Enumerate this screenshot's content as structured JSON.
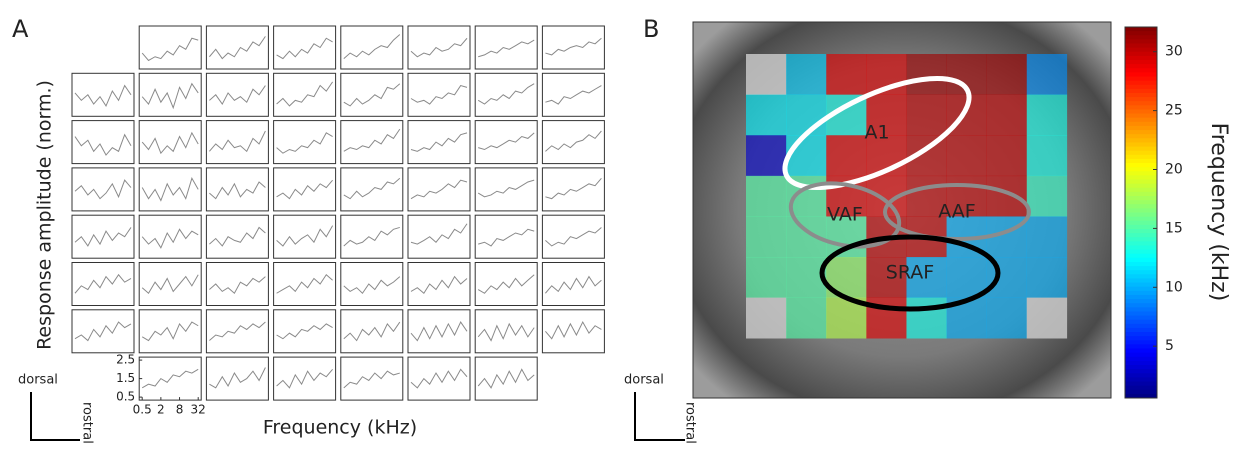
{
  "chart_data": [
    {
      "type": "small-multiples",
      "label": "A",
      "xlabel": "Frequency (kHz)",
      "ylabel": "Response amplitude (norm.)",
      "orientation": {
        "up": "dorsal",
        "right": "rostral"
      },
      "xlog": true,
      "xlim": [
        0.5,
        32
      ],
      "xticks": [
        0.5,
        2,
        8,
        32
      ],
      "ylim": [
        0.5,
        2.5
      ],
      "yticks": [
        0.5,
        1.5,
        2.5
      ],
      "color": "#8a8a8a",
      "x": [
        0.5,
        0.8,
        1.3,
        2,
        3.2,
        5,
        8,
        12.7,
        20,
        32
      ],
      "rows": [
        [
          null,
          [
            1.2,
            0.8,
            1.0,
            0.9,
            1.3,
            1.1,
            1.6,
            1.4,
            2.0,
            1.9
          ],
          [
            1.0,
            1.4,
            0.9,
            1.2,
            1.0,
            1.5,
            1.3,
            1.8,
            1.6,
            2.1
          ],
          [
            1.1,
            0.9,
            1.3,
            1.0,
            1.4,
            1.2,
            1.7,
            1.5,
            2.0,
            1.8
          ],
          [
            0.9,
            1.2,
            1.0,
            1.3,
            1.1,
            1.4,
            1.6,
            1.5,
            1.9,
            2.2
          ],
          [
            1.3,
            1.0,
            1.2,
            1.1,
            1.5,
            1.3,
            1.4,
            1.7,
            1.6,
            2.0
          ],
          [
            1.0,
            1.1,
            1.3,
            1.2,
            1.5,
            1.4,
            1.6,
            1.8,
            1.7,
            1.9
          ],
          [
            1.2,
            1.1,
            1.4,
            1.3,
            1.5,
            1.6,
            1.5,
            1.8,
            1.7,
            2.0
          ]
        ],
        [
          [
            1.6,
            1.2,
            1.5,
            1.0,
            1.4,
            0.9,
            1.7,
            1.2,
            2.0,
            1.5
          ],
          [
            1.4,
            1.0,
            1.8,
            1.1,
            1.6,
            0.8,
            1.9,
            1.3,
            2.1,
            1.6
          ],
          [
            1.2,
            1.5,
            1.0,
            1.6,
            1.2,
            1.4,
            1.1,
            1.8,
            1.5,
            2.0
          ],
          [
            1.0,
            1.3,
            0.9,
            1.2,
            1.1,
            1.5,
            1.4,
            2.0,
            1.7,
            2.2
          ],
          [
            1.1,
            0.9,
            1.3,
            1.0,
            1.2,
            1.5,
            1.3,
            1.9,
            1.8,
            2.1
          ],
          [
            1.3,
            1.1,
            1.2,
            1.0,
            1.4,
            1.3,
            1.6,
            1.5,
            2.0,
            1.9
          ],
          [
            1.2,
            1.0,
            1.3,
            1.2,
            1.5,
            1.3,
            1.7,
            1.6,
            1.9,
            2.1
          ],
          [
            1.1,
            1.2,
            1.0,
            1.4,
            1.3,
            1.5,
            1.7,
            1.6,
            1.8,
            2.0
          ]
        ],
        [
          [
            1.8,
            1.3,
            1.6,
            1.0,
            1.4,
            0.8,
            1.2,
            1.0,
            1.9,
            1.3
          ],
          [
            1.5,
            1.1,
            1.7,
            0.9,
            1.3,
            1.0,
            1.8,
            1.2,
            2.0,
            1.4
          ],
          [
            1.0,
            1.4,
            1.1,
            1.6,
            1.2,
            1.3,
            1.0,
            1.7,
            1.4,
            2.1
          ],
          [
            1.2,
            0.9,
            1.1,
            1.0,
            1.3,
            1.2,
            1.6,
            1.4,
            2.0,
            1.8
          ],
          [
            1.0,
            1.2,
            1.1,
            1.3,
            1.2,
            1.6,
            1.4,
            1.9,
            1.7,
            2.2
          ],
          [
            1.1,
            1.0,
            1.2,
            1.1,
            1.5,
            1.3,
            1.7,
            1.5,
            1.9,
            2.0
          ],
          [
            1.2,
            1.1,
            1.3,
            1.2,
            1.4,
            1.6,
            1.5,
            1.8,
            1.7,
            2.0
          ],
          [
            1.0,
            1.3,
            1.1,
            1.4,
            1.2,
            1.5,
            1.6,
            1.9,
            1.7,
            2.1
          ]
        ],
        [
          [
            1.4,
            1.7,
            1.2,
            1.5,
            1.0,
            1.3,
            1.8,
            1.1,
            2.0,
            1.6
          ],
          [
            1.6,
            1.0,
            1.5,
            0.9,
            1.8,
            1.2,
            1.6,
            1.0,
            2.1,
            1.5
          ],
          [
            1.3,
            1.0,
            1.6,
            1.2,
            1.8,
            1.1,
            1.5,
            1.3,
            1.9,
            1.6
          ],
          [
            1.1,
            1.3,
            1.0,
            1.5,
            1.2,
            1.7,
            1.4,
            1.8,
            1.6,
            2.0
          ],
          [
            1.2,
            1.0,
            1.4,
            1.1,
            1.3,
            1.6,
            1.5,
            1.9,
            1.8,
            2.1
          ],
          [
            1.0,
            1.2,
            1.1,
            1.4,
            1.3,
            1.5,
            1.8,
            1.6,
            2.0,
            1.9
          ],
          [
            1.3,
            1.1,
            1.2,
            1.4,
            1.3,
            1.6,
            1.5,
            1.7,
            1.9,
            2.0
          ],
          [
            1.1,
            1.0,
            1.3,
            1.2,
            1.5,
            1.4,
            1.6,
            1.8,
            1.7,
            2.1
          ]
        ],
        [
          [
            1.2,
            1.5,
            1.0,
            1.6,
            1.1,
            1.8,
            1.3,
            1.7,
            1.5,
            2.0
          ],
          [
            1.5,
            1.1,
            1.4,
            0.9,
            1.7,
            1.2,
            1.9,
            1.4,
            1.8,
            1.6
          ],
          [
            1.1,
            1.4,
            1.0,
            1.5,
            1.3,
            1.2,
            1.7,
            1.4,
            2.0,
            1.7
          ],
          [
            1.3,
            1.0,
            1.5,
            1.1,
            1.4,
            1.6,
            1.2,
            1.9,
            1.5,
            2.1
          ],
          [
            1.0,
            1.3,
            1.1,
            1.2,
            1.5,
            1.3,
            1.8,
            1.6,
            1.9,
            2.0
          ],
          [
            1.2,
            1.1,
            1.3,
            1.5,
            1.2,
            1.6,
            1.4,
            1.9,
            1.7,
            2.2
          ],
          [
            1.1,
            1.2,
            1.0,
            1.4,
            1.3,
            1.5,
            1.7,
            1.6,
            1.9,
            1.8
          ],
          [
            1.3,
            1.0,
            1.2,
            1.1,
            1.5,
            1.4,
            1.6,
            1.8,
            1.7,
            2.0
          ]
        ],
        [
          [
            1.0,
            1.4,
            1.2,
            1.7,
            1.3,
            1.9,
            1.5,
            2.0,
            1.6,
            1.8
          ],
          [
            1.3,
            1.0,
            1.6,
            1.2,
            1.8,
            1.1,
            1.5,
            1.9,
            1.4,
            2.0
          ],
          [
            1.2,
            1.5,
            1.1,
            1.3,
            1.0,
            1.6,
            1.4,
            1.8,
            1.6,
            1.9
          ],
          [
            1.0,
            1.2,
            1.4,
            1.1,
            1.6,
            1.3,
            1.8,
            1.5,
            2.0,
            1.7
          ],
          [
            1.4,
            1.1,
            1.3,
            1.0,
            1.5,
            1.2,
            1.7,
            1.4,
            1.6,
            1.9
          ],
          [
            1.1,
            1.3,
            1.0,
            1.5,
            1.2,
            1.7,
            1.3,
            1.9,
            1.5,
            1.8
          ],
          [
            1.2,
            1.0,
            1.4,
            1.2,
            1.6,
            1.3,
            1.8,
            1.4,
            1.7,
            2.0
          ],
          [
            1.0,
            1.4,
            1.1,
            1.6,
            1.2,
            1.8,
            1.3,
            1.9,
            1.4,
            1.7
          ]
        ],
        [
          [
            1.1,
            1.3,
            1.0,
            1.6,
            1.2,
            1.8,
            1.4,
            2.0,
            1.7,
            1.9
          ],
          [
            1.2,
            1.0,
            1.5,
            1.3,
            1.7,
            1.1,
            1.9,
            1.5,
            2.0,
            1.8
          ],
          [
            1.0,
            1.3,
            1.2,
            1.5,
            1.4,
            1.8,
            1.6,
            1.9,
            1.7,
            2.0
          ],
          [
            1.3,
            1.1,
            1.4,
            1.2,
            1.6,
            1.5,
            1.8,
            1.6,
            1.9,
            1.7
          ],
          [
            1.1,
            1.4,
            1.0,
            1.6,
            1.3,
            1.7,
            1.2,
            1.9,
            1.5,
            2.0
          ],
          [
            1.4,
            1.0,
            1.7,
            1.1,
            1.8,
            1.2,
            1.9,
            1.3,
            2.0,
            1.5
          ],
          [
            1.2,
            1.6,
            1.0,
            1.8,
            1.1,
            1.9,
            1.3,
            1.8,
            1.2,
            1.7
          ],
          [
            1.5,
            1.1,
            1.8,
            1.2,
            1.9,
            1.3,
            2.0,
            1.4,
            1.8,
            1.6
          ]
        ],
        [
          null,
          [
            1.0,
            1.2,
            1.1,
            1.5,
            1.3,
            1.7,
            1.6,
            1.9,
            1.8,
            2.0
          ],
          [
            1.2,
            1.0,
            1.6,
            1.1,
            1.8,
            1.3,
            1.5,
            1.9,
            1.4,
            2.1
          ],
          [
            1.1,
            1.4,
            1.0,
            1.7,
            1.2,
            1.9,
            1.4,
            1.8,
            1.6,
            2.0
          ],
          [
            1.0,
            1.3,
            1.2,
            1.6,
            1.4,
            1.8,
            1.5,
            1.9,
            1.7,
            1.8
          ],
          [
            1.3,
            1.0,
            1.5,
            1.2,
            1.8,
            1.3,
            1.9,
            1.4,
            2.0,
            1.6
          ],
          [
            1.1,
            1.5,
            1.0,
            1.7,
            1.2,
            1.9,
            1.3,
            2.0,
            1.4,
            1.7
          ],
          null
        ]
      ]
    },
    {
      "type": "heatmap",
      "label": "B",
      "orientation": {
        "up": "dorsal",
        "right": "rostral"
      },
      "colormap": "jet",
      "empty_color": "#c8c8c8",
      "colorbar": {
        "label": "Frequency (kHz)",
        "lim": [
          0.6,
          32.1
        ],
        "ticks": [
          5,
          10,
          15,
          20,
          25,
          30
        ]
      },
      "values": [
        [
          null,
          11,
          29,
          29,
          31,
          31,
          31,
          9
        ],
        [
          12,
          12,
          13,
          29,
          30,
          30,
          30,
          13
        ],
        [
          3,
          12,
          29,
          29,
          30,
          30,
          30,
          13
        ],
        [
          15,
          15,
          29,
          29,
          30,
          30,
          30,
          14
        ],
        [
          15,
          15,
          15,
          30,
          30,
          10,
          10,
          10
        ],
        [
          15,
          15,
          17,
          30,
          10,
          10,
          10,
          10
        ],
        [
          null,
          15,
          18,
          29,
          13,
          10,
          10,
          null
        ]
      ],
      "regions": [
        {
          "name": "A1",
          "color": "#ffffff"
        },
        {
          "name": "VAF",
          "color": "#8c8c8c"
        },
        {
          "name": "AAF",
          "color": "#8c8c8c"
        },
        {
          "name": "SRAF",
          "color": "#000000"
        }
      ]
    }
  ]
}
